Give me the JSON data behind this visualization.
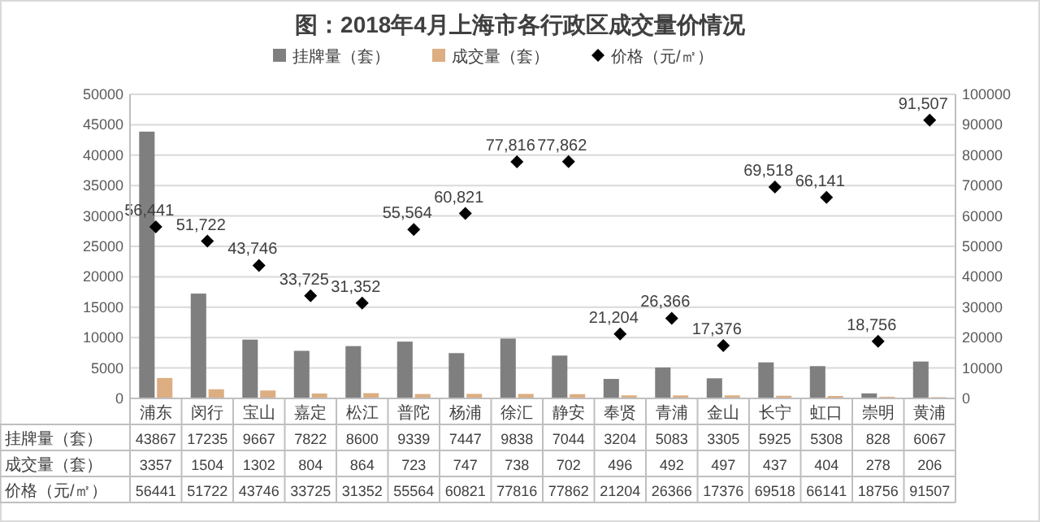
{
  "chart_data": {
    "type": "bar",
    "title": "图：2018年4月上海市各行政区成交量价情况",
    "categories": [
      "浦东",
      "闵行",
      "宝山",
      "嘉定",
      "松江",
      "普陀",
      "杨浦",
      "徐汇",
      "静安",
      "奉贤",
      "青浦",
      "金山",
      "长宁",
      "虹口",
      "崇明",
      "黄浦"
    ],
    "series": [
      {
        "name": "挂牌量（套）",
        "color": "#7f7f7f",
        "values": [
          43867,
          17235,
          9667,
          7822,
          8600,
          9339,
          7447,
          9838,
          7044,
          3204,
          5083,
          3305,
          5925,
          5308,
          828,
          6067
        ]
      },
      {
        "name": "成交量（套）",
        "color": "#dcae82",
        "values": [
          3357,
          1504,
          1302,
          804,
          864,
          723,
          747,
          738,
          702,
          496,
          492,
          497,
          437,
          404,
          278,
          206
        ]
      },
      {
        "name": "价格（元/㎡）",
        "type": "scatter",
        "axis": "y2",
        "marker": "diamond",
        "color": "#000000",
        "values": [
          56441,
          51722,
          43746,
          33725,
          31352,
          55564,
          60821,
          77816,
          77862,
          21204,
          26366,
          17376,
          69518,
          66141,
          18756,
          91507
        ]
      }
    ],
    "ylim": [
      0,
      50000
    ],
    "yticks": [
      0,
      5000,
      10000,
      15000,
      20000,
      25000,
      30000,
      35000,
      40000,
      45000,
      50000
    ],
    "y2lim": [
      0,
      100000
    ],
    "y2ticks": [
      0,
      10000,
      20000,
      30000,
      40000,
      50000,
      60000,
      70000,
      80000,
      90000,
      100000
    ],
    "grid": "y",
    "legend": "top",
    "data_labels": true,
    "annotations": [
      "56,441",
      "51,722",
      "43,746",
      "33,725",
      "31,352",
      "55,564",
      "60,821",
      "77,816",
      "77,862",
      "21,204",
      "26,366",
      "17,376",
      "69,518",
      "66,141",
      "18,756",
      "91,507"
    ]
  }
}
